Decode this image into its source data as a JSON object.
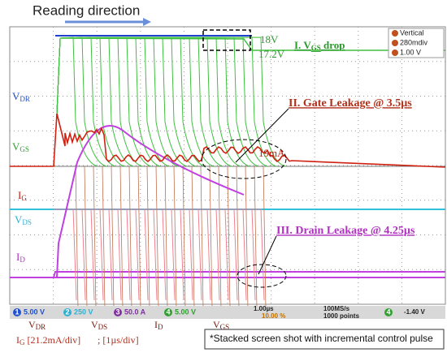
{
  "header": {
    "title": "Reading direction"
  },
  "annotations": {
    "v_high": "18V",
    "v_low": "17.2V",
    "vgs_drop": {
      "base": "I. V",
      "sub": "GS",
      "rest": " drop"
    },
    "gate_leakage": "II. Gate Leakage @ 3.5µs",
    "current_peak": "19mA",
    "drain_leakage": "III. Drain Leakage @ 4.25µs",
    "footnote": "*Stacked screen shot with incremental control pulse"
  },
  "traces": [
    {
      "base": "V",
      "sub": "DR"
    },
    {
      "base": "V",
      "sub": "GS"
    },
    {
      "base": "I",
      "sub": "G"
    },
    {
      "base": "V",
      "sub": "DS"
    },
    {
      "base": "I",
      "sub": "D"
    }
  ],
  "math_box": [
    "Vertical",
    "280mdiv",
    "1.00 V"
  ],
  "scope_bar": {
    "channels": [
      {
        "id": "1",
        "scale": "5.00 V"
      },
      {
        "id": "2",
        "scale": "250 V"
      },
      {
        "id": "3",
        "scale": "50.0 A"
      },
      {
        "id": "4",
        "scale": "5.00 V"
      }
    ],
    "timebase": "1.00µs",
    "position": "10.00 %",
    "sample_rate": "100MS/s",
    "record": "1000 points",
    "trigger_ch": "4",
    "trigger_level": "-1.40 V"
  },
  "bottom_labels": [
    {
      "base": "V",
      "sub": "DR"
    },
    {
      "base": "V",
      "sub": "DS"
    },
    {
      "base": "I",
      "sub": "D"
    },
    {
      "base": "V",
      "sub": "GS"
    }
  ],
  "scale_note": {
    "base": "I",
    "sub": "G",
    "rest": " [21.2mA/div]",
    "time": "; [1µs/div]"
  }
}
